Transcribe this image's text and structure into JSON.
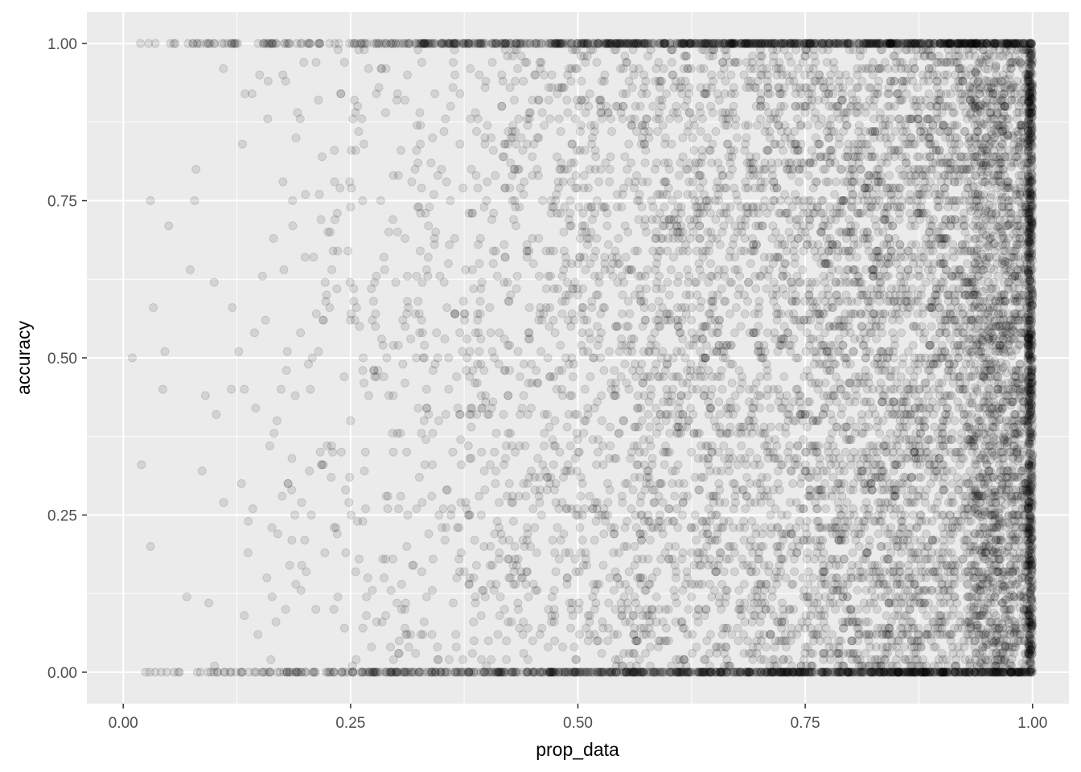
{
  "chart_data": {
    "type": "scatter",
    "xlabel": "prop_data",
    "ylabel": "accuracy",
    "xlim": [
      -0.04,
      1.04
    ],
    "ylim": [
      -0.05,
      1.05
    ],
    "x_ticks": [
      0.0,
      0.25,
      0.5,
      0.75,
      1.0
    ],
    "x_tick_labels": [
      "0.00",
      "0.25",
      "0.50",
      "0.75",
      "1.00"
    ],
    "y_ticks": [
      0.0,
      0.25,
      0.5,
      0.75,
      1.0
    ],
    "y_tick_labels": [
      "0.00",
      "0.25",
      "0.50",
      "0.75",
      "1.00"
    ],
    "grid": true,
    "legend": "none",
    "point_color": "#000000",
    "point_alpha": 0.1,
    "panel_background": "#ebebeb",
    "grid_color": "#ffffff",
    "sample_points": {
      "x": [
        0.01,
        0.02,
        0.03,
        0.05,
        0.08,
        0.1,
        0.12,
        0.15,
        0.19,
        0.22,
        0.25,
        0.28,
        0.31,
        0.35,
        0.38,
        0.42,
        0.45,
        0.5,
        0.55,
        0.6,
        0.65,
        0.7,
        0.75,
        0.8,
        0.85,
        0.9,
        0.93,
        0.95,
        0.97,
        1.0,
        0.03,
        0.07,
        0.13,
        0.2,
        0.27,
        0.36,
        0.46,
        0.58,
        0.68,
        0.78,
        0.88,
        0.96,
        0.99
      ],
      "y": [
        0.5,
        0.33,
        0.75,
        0.71,
        0.8,
        0.62,
        0.58,
        0.95,
        0.85,
        0.56,
        0.4,
        0.48,
        0.55,
        0.8,
        0.14,
        0.66,
        0.69,
        0.6,
        0.9,
        0.2,
        0.4,
        0.63,
        0.35,
        0.7,
        0.42,
        0.55,
        0.3,
        0.66,
        0.9,
        0.5,
        0.2,
        0.12,
        0.3,
        0.66,
        0.44,
        0.9,
        0.25,
        0.36,
        0.7,
        0.18,
        0.85,
        0.95,
        0.6
      ],
      "note_counts_approx": 20000
    },
    "dense_rows": [
      {
        "y": 0.0,
        "x_from": 0.0,
        "x_to": 1.0
      },
      {
        "y": 1.0,
        "x_from": 0.0,
        "x_to": 1.0
      }
    ]
  }
}
